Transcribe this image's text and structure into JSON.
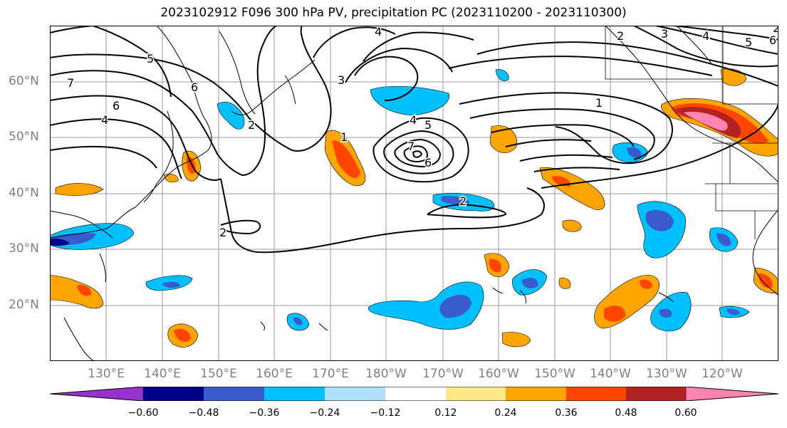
{
  "title": "2023102912 F096 300 hPa PV, precipitation PC (2023110200 - 2023110300)",
  "lat_labels": [
    "60°N",
    "50°N",
    "40°N",
    "30°N",
    "20°N"
  ],
  "lon_labels": [
    "130°E",
    "140°E",
    "150°E",
    "160°E",
    "170°E",
    "180°W",
    "170°W",
    "160°W",
    "150°W",
    "140°W",
    "130°W",
    "120°W"
  ],
  "contour_labels": [
    "7",
    "6",
    "5",
    "4",
    "6",
    "2",
    "2",
    "3",
    "4",
    "4",
    "5",
    "7",
    "6",
    "1",
    "2",
    "2",
    "3",
    "4",
    "5",
    "6",
    "1",
    "2"
  ],
  "colorbar": {
    "colors": [
      "#9932cc",
      "#00008b",
      "#3a5bcd",
      "#00bfff",
      "#b0e0fa",
      "#ffffff",
      "#ffe888",
      "#ffa500",
      "#ff4500",
      "#b22222",
      "#ff85b0"
    ],
    "tick_labels": [
      "−0.60",
      "−0.48",
      "−0.36",
      "−0.24",
      "−0.12",
      "0.12",
      "0.24",
      "0.36",
      "0.48",
      "0.60"
    ]
  }
}
